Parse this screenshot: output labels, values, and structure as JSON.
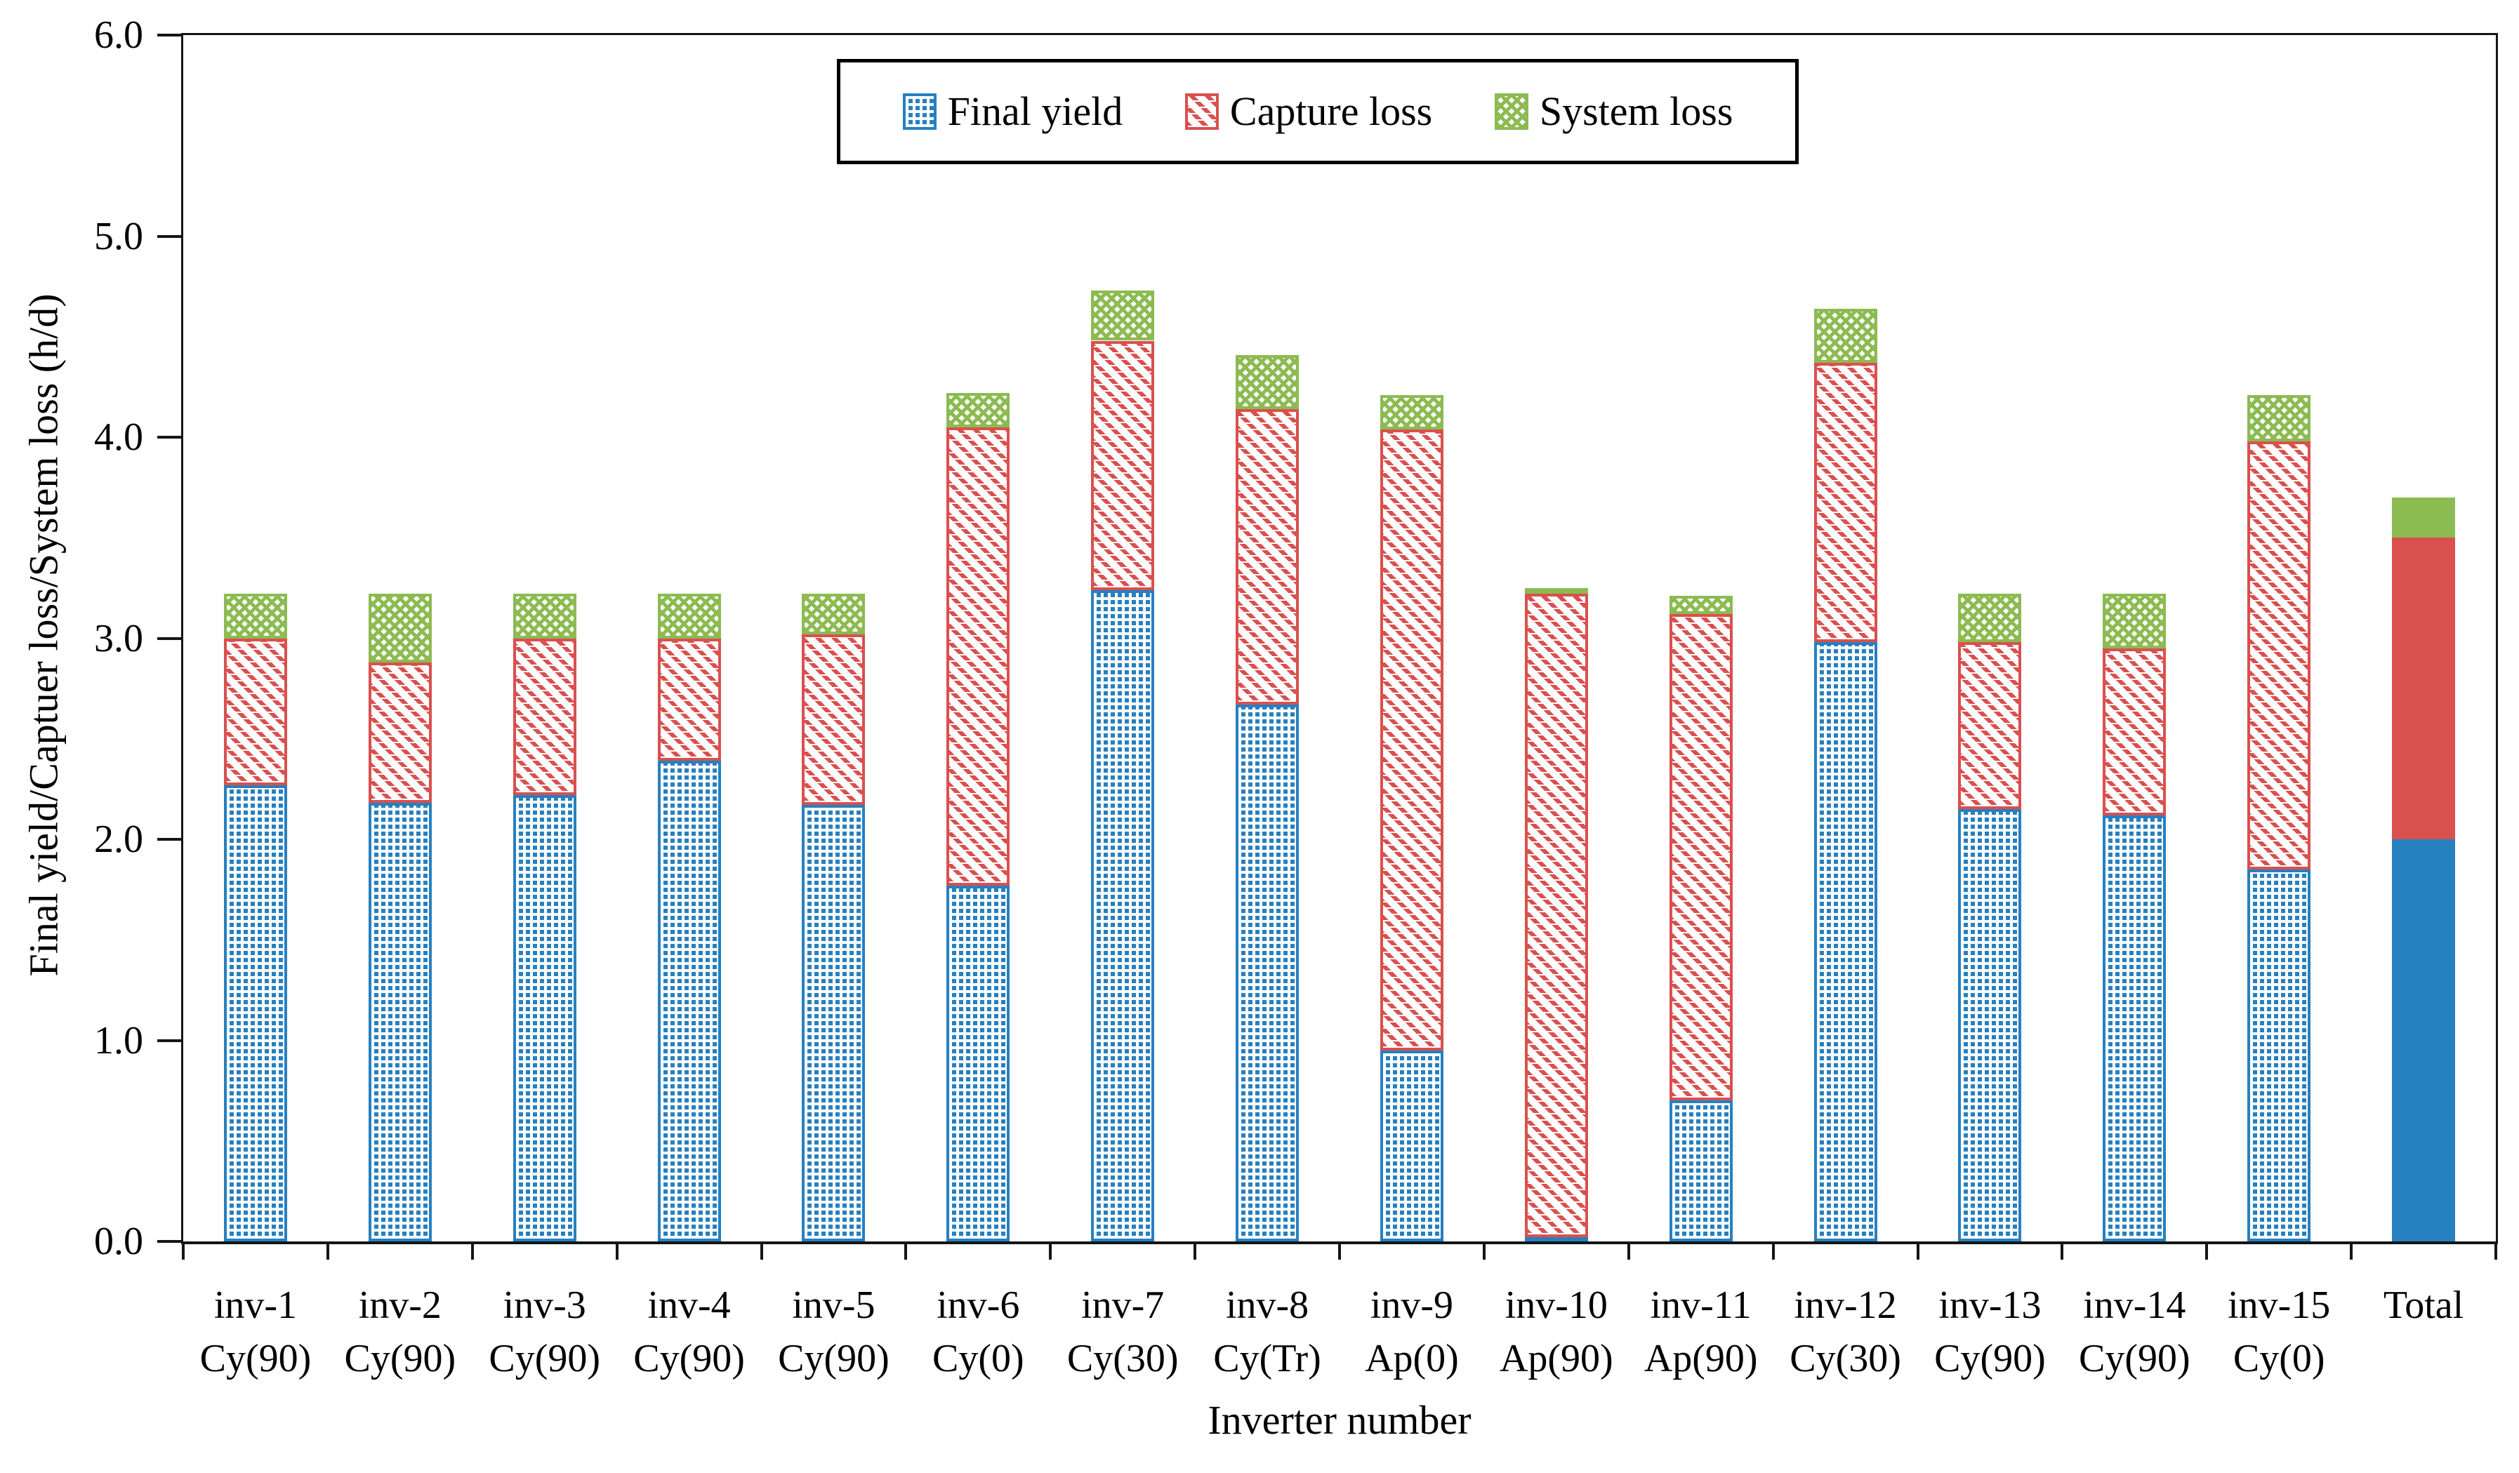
{
  "chart_data": {
    "type": "bar",
    "stacked": true,
    "title": "",
    "xlabel": "Inverter number",
    "ylabel": "Final  yield/Captuer loss/System loss (h/d)",
    "ylim": [
      0.0,
      6.0
    ],
    "ytick_step": 1.0,
    "ytick_labels": [
      "0.0",
      "1.0",
      "2.0",
      "3.0",
      "4.0",
      "5.0",
      "6.0"
    ],
    "grid": false,
    "legend_position": "top-center",
    "categories": [
      {
        "line1": "inv-1",
        "line2": "Cy(90)",
        "style": "pattern"
      },
      {
        "line1": "inv-2",
        "line2": "Cy(90)",
        "style": "pattern"
      },
      {
        "line1": "inv-3",
        "line2": "Cy(90)",
        "style": "pattern"
      },
      {
        "line1": "inv-4",
        "line2": "Cy(90)",
        "style": "pattern"
      },
      {
        "line1": "inv-5",
        "line2": "Cy(90)",
        "style": "pattern"
      },
      {
        "line1": "inv-6",
        "line2": "Cy(0)",
        "style": "pattern"
      },
      {
        "line1": "inv-7",
        "line2": "Cy(30)",
        "style": "pattern"
      },
      {
        "line1": "inv-8",
        "line2": "Cy(Tr)",
        "style": "pattern"
      },
      {
        "line1": "inv-9",
        "line2": "Ap(0)",
        "style": "pattern"
      },
      {
        "line1": "inv-10",
        "line2": "Ap(90)",
        "style": "pattern"
      },
      {
        "line1": "inv-11",
        "line2": "Ap(90)",
        "style": "pattern"
      },
      {
        "line1": "inv-12",
        "line2": "Cy(30)",
        "style": "pattern"
      },
      {
        "line1": "inv-13",
        "line2": "Cy(90)",
        "style": "pattern"
      },
      {
        "line1": "inv-14",
        "line2": "Cy(90)",
        "style": "pattern"
      },
      {
        "line1": "inv-15",
        "line2": "Cy(0)",
        "style": "pattern"
      },
      {
        "line1": "Total",
        "line2": "",
        "style": "solid"
      }
    ],
    "series": [
      {
        "name": "Final yield",
        "color": "#2680c0",
        "pattern": "dot-grid",
        "values": [
          2.27,
          2.18,
          2.22,
          2.39,
          2.17,
          1.77,
          3.24,
          2.67,
          0.95,
          0.02,
          0.7,
          2.98,
          2.15,
          2.12,
          1.85,
          2.0
        ]
      },
      {
        "name": "Capture loss",
        "color": "#d9504e",
        "pattern": "diagonal-hatch",
        "values": [
          0.73,
          0.7,
          0.78,
          0.61,
          0.85,
          2.28,
          1.24,
          1.47,
          3.09,
          3.2,
          2.42,
          1.39,
          0.83,
          0.83,
          2.13,
          1.5
        ]
      },
      {
        "name": "System loss",
        "color": "#8cbb52",
        "pattern": "cross-hatch",
        "values": [
          0.22,
          0.34,
          0.22,
          0.22,
          0.2,
          0.17,
          0.25,
          0.27,
          0.17,
          0.03,
          0.09,
          0.27,
          0.24,
          0.27,
          0.23,
          0.2
        ]
      }
    ],
    "stack_tops": {
      "final_yield_top": [
        2.27,
        2.18,
        2.22,
        2.39,
        2.17,
        1.77,
        3.24,
        2.67,
        0.95,
        0.02,
        0.7,
        2.98,
        2.15,
        2.12,
        1.85,
        2.0
      ],
      "capture_loss_top": [
        3.0,
        2.88,
        3.0,
        3.0,
        3.02,
        4.05,
        4.48,
        4.14,
        4.04,
        3.22,
        3.12,
        4.37,
        2.98,
        2.95,
        3.98,
        3.5
      ],
      "system_loss_top": [
        3.22,
        3.22,
        3.22,
        3.22,
        3.22,
        4.22,
        4.73,
        4.41,
        4.21,
        3.25,
        3.21,
        4.64,
        3.22,
        3.22,
        4.21,
        3.7
      ]
    },
    "axis_color": "#151515"
  }
}
